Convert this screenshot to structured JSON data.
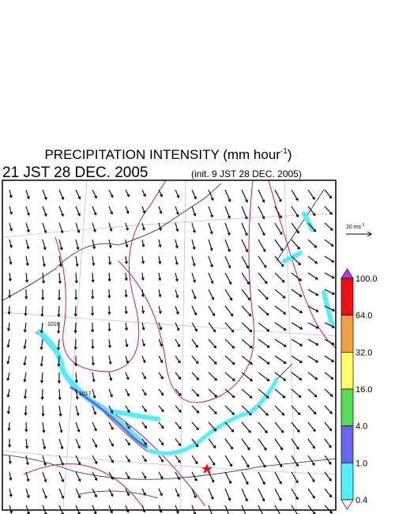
{
  "header": {
    "title": "PRECIPITATION INTENSITY (mm hour",
    "title_sup": "-1",
    "title_end": ")",
    "valid_time": "21 JST 28 DEC. 2005",
    "init_time": "(init. 9 JST 28 DEC. 2005)"
  },
  "wind_legend": {
    "label": "20 ms",
    "label_sup": "-1"
  },
  "contour_labels": [
    "1016",
    "1017"
  ],
  "colorbar": {
    "top_color": "#b23cf0",
    "bottom_color": "#ffffff",
    "segments": [
      {
        "color": "#ee1111"
      },
      {
        "color": "#f5a040"
      },
      {
        "color": "#ffff66"
      },
      {
        "color": "#55dd55"
      },
      {
        "color": "#6666ee"
      },
      {
        "color": "#55eeff"
      }
    ],
    "labels": [
      "100.0",
      "64.0",
      "32.0",
      "16.0",
      "4.0",
      "1.0",
      "0.4"
    ]
  }
}
